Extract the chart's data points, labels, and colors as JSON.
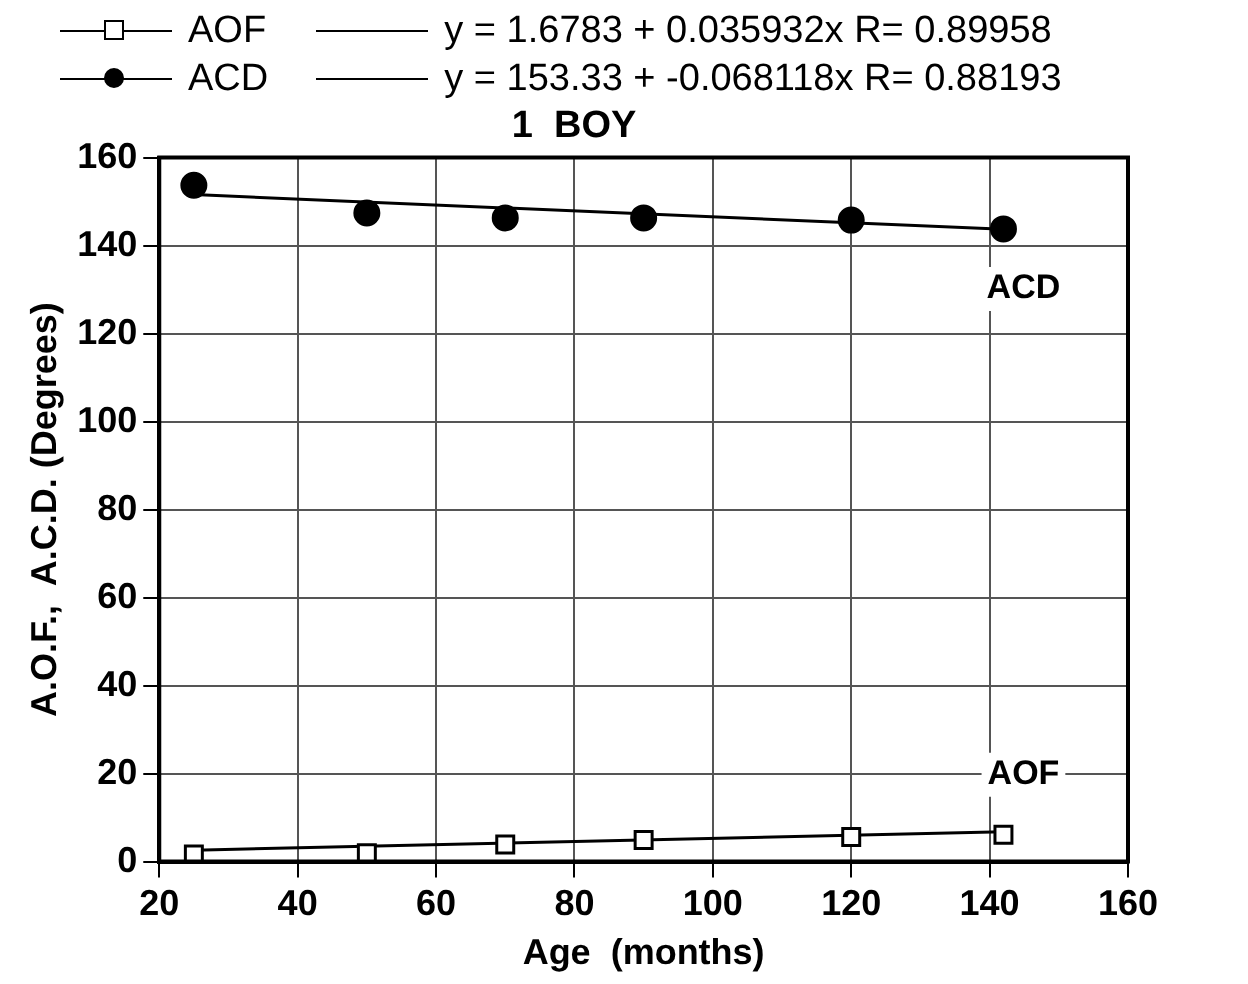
{
  "chart_data": {
    "type": "scatter",
    "title": "1  BOY",
    "xlabel": "Age  (months)",
    "ylabel": "A.O.F.,  A.C.D. (Degrees)",
    "xlim": [
      20,
      160
    ],
    "xticks": [
      20,
      40,
      60,
      80,
      100,
      120,
      140,
      160
    ],
    "ylim": [
      0,
      160
    ],
    "yticks": [
      0,
      20,
      40,
      60,
      80,
      100,
      120,
      140,
      160
    ],
    "grid": true,
    "legend": "top left",
    "series": [
      {
        "name": "AOF",
        "type": "scatter",
        "color": "#000000",
        "marker": "square",
        "x": [
          25,
          50,
          70,
          90,
          120,
          142
        ],
        "values": [
          1.6,
          1.9,
          3.9,
          4.9,
          5.6,
          6.1
        ]
      },
      {
        "name": "ACD",
        "type": "scatter",
        "color": "#000000",
        "marker": "circle",
        "x": [
          25,
          50,
          70,
          90,
          120,
          142
        ],
        "values": [
          153.7,
          147.4,
          146.3,
          146.3,
          145.8,
          143.8
        ]
      },
      {
        "name": "y = 1.6783 + 0.035932x R= 0.89958",
        "type": "line",
        "color": "#000000",
        "marker": "none",
        "x": [
          25,
          142
        ],
        "values": [
          2.6,
          6.8
        ]
      },
      {
        "name": "y = 153.33 + -0.068118x R= 0.88193",
        "type": "line",
        "color": "#000000",
        "marker": "none",
        "x": [
          25,
          142
        ],
        "values": [
          151.6,
          143.7
        ]
      }
    ],
    "annotations": [
      {
        "text": "ACD",
        "x": 142,
        "y": 143.8
      },
      {
        "text": "AOF",
        "x": 142,
        "y": 6.1
      }
    ]
  }
}
